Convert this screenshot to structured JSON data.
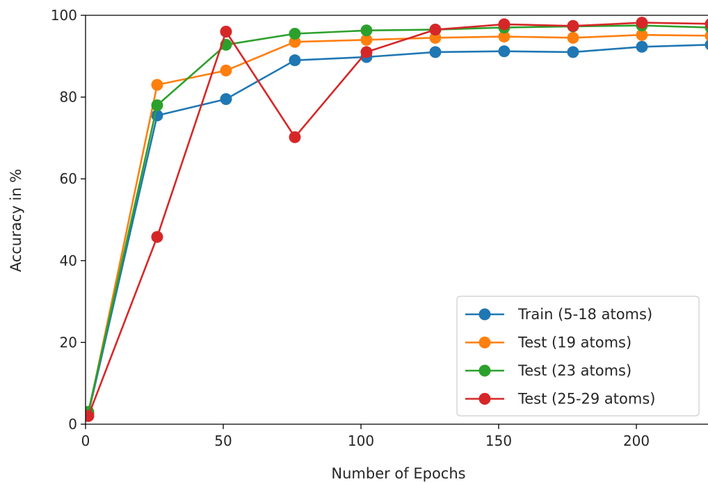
{
  "chart_data": {
    "type": "line",
    "title": "",
    "xlabel": "Number of Epochs",
    "ylabel": "Accuracy in %",
    "xlim": [
      0,
      226
    ],
    "ylim": [
      0,
      100
    ],
    "xticks": [
      0,
      50,
      100,
      150,
      200
    ],
    "yticks": [
      0,
      20,
      40,
      60,
      80,
      100
    ],
    "grid": false,
    "legend_position": "lower-right",
    "x": [
      1,
      26,
      51,
      76,
      102,
      127,
      152,
      177,
      202,
      227
    ],
    "series": [
      {
        "name": "Train (5-18 atoms)",
        "color": "#1f77b4",
        "values": [
          2.5,
          75.5,
          79.5,
          89.0,
          89.8,
          91.0,
          91.2,
          91.0,
          92.3,
          92.8
        ]
      },
      {
        "name": "Test (19 atoms)",
        "color": "#ff7f0e",
        "values": [
          2.5,
          83.0,
          86.5,
          93.5,
          94.0,
          94.5,
          94.8,
          94.5,
          95.2,
          95.0
        ]
      },
      {
        "name": "Test (23 atoms)",
        "color": "#2ca02c",
        "values": [
          3.0,
          78.0,
          92.8,
          95.5,
          96.3,
          96.5,
          97.0,
          97.3,
          97.5,
          97.0
        ]
      },
      {
        "name": "Test (25-29 atoms)",
        "color": "#d62728",
        "values": [
          2.0,
          45.8,
          96.0,
          70.2,
          91.0,
          96.5,
          97.8,
          97.4,
          98.2,
          97.9
        ]
      }
    ]
  }
}
